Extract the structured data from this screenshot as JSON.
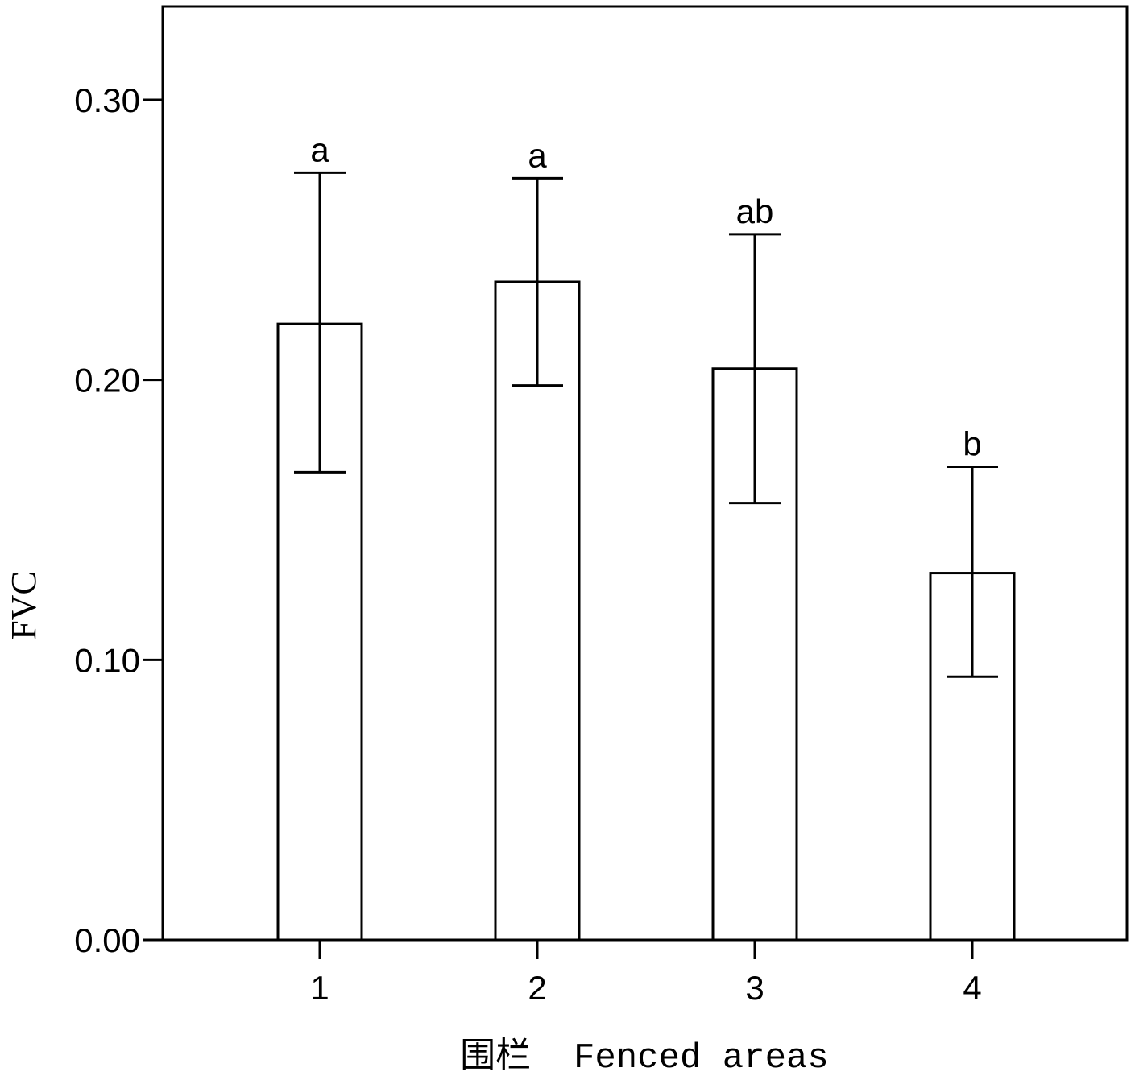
{
  "chart_data": {
    "type": "bar",
    "xlabel": "围栏  Fenced areas",
    "ylabel": "FVC",
    "ylim": [
      0,
      0.33
    ],
    "yticks": [
      "0.00",
      "0.10",
      "0.20",
      "0.30"
    ],
    "ytick_values": [
      0.0,
      0.1,
      0.2,
      0.3
    ],
    "categories": [
      "1",
      "2",
      "3",
      "4"
    ],
    "values": [
      0.22,
      0.235,
      0.204,
      0.131
    ],
    "error_low": [
      0.167,
      0.198,
      0.156,
      0.094
    ],
    "error_high": [
      0.274,
      0.272,
      0.252,
      0.169
    ],
    "significance_letters": [
      "a",
      "a",
      "ab",
      "b"
    ],
    "bar_fill": "#ffffff",
    "stroke_color": "#000000",
    "grid": false
  }
}
